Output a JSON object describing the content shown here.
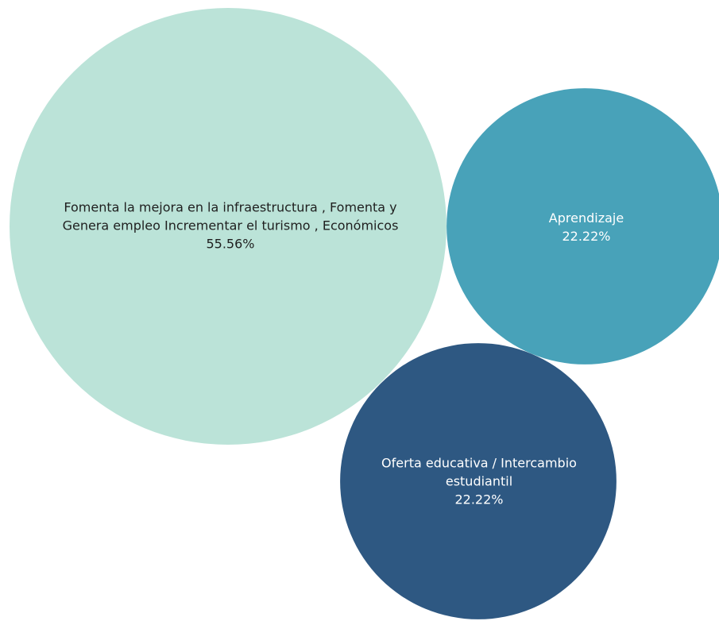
{
  "chart_data": {
    "type": "bubble",
    "series": [
      {
        "name": "Fomenta la mejora en la infraestructura , Fomenta y Genera empleo Incrementar el turismo , Económicos",
        "label_lines": [
          "Fomenta la mejora en la infraestructura , Fomenta y",
          "Genera empleo Incrementar el turismo , Económicos"
        ],
        "value": 55.56,
        "value_label": "55.56%",
        "color": "#bbe3d8",
        "text_color": "#1f1f1f"
      },
      {
        "name": "Aprendizaje",
        "label_lines": [
          "Aprendizaje"
        ],
        "value": 22.22,
        "value_label": "22.22%",
        "color": "#48a2b9",
        "text_color": "#ffffff"
      },
      {
        "name": "Oferta educativa / Intercambio estudiantil",
        "label_lines": [
          "Oferta educativa / Intercambio",
          "estudiantil"
        ],
        "value": 22.22,
        "value_label": "22.22%",
        "color": "#2e5882",
        "text_color": "#ffffff"
      }
    ]
  }
}
